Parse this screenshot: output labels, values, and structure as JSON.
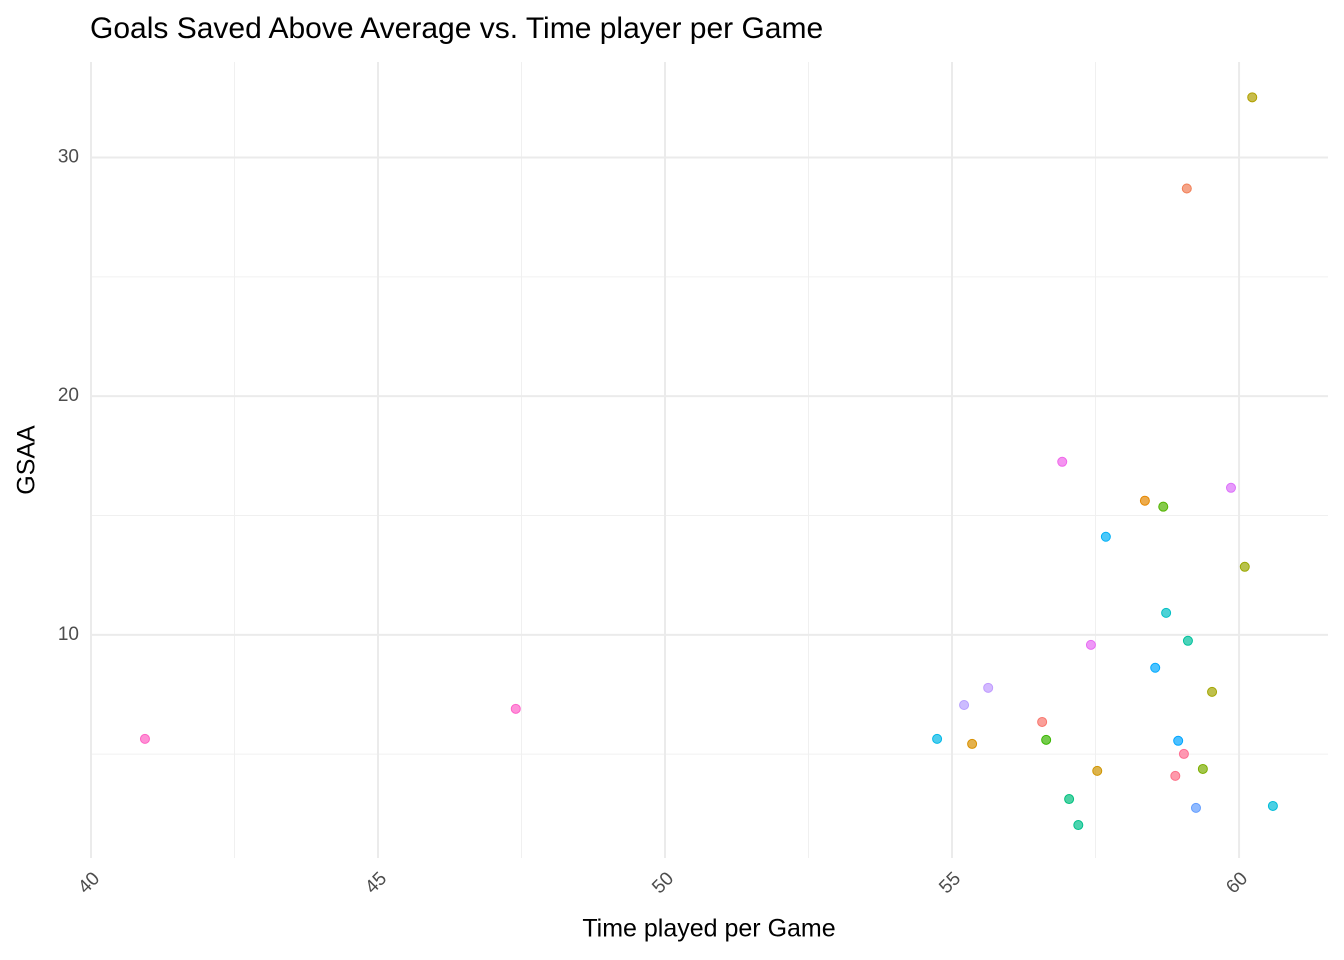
{
  "chart_data": {
    "type": "scatter",
    "title": "Goals Saved Above Average vs. Time player per Game",
    "x_label": "Time played per Game",
    "y_label": "GSAA",
    "x": [
      40.94,
      47.4,
      54.74,
      55.21,
      55.35,
      55.63,
      56.57,
      56.64,
      56.92,
      57.04,
      57.2,
      57.42,
      57.53,
      57.68,
      58.36,
      58.54,
      58.68,
      58.73,
      58.89,
      58.94,
      59.04,
      59.09,
      59.11,
      59.25,
      59.37,
      59.53,
      59.86,
      60.1,
      60.23,
      60.59
    ],
    "values": [
      5.64,
      6.9,
      5.64,
      7.06,
      5.43,
      7.78,
      6.35,
      5.6,
      17.25,
      3.12,
      2.03,
      9.58,
      4.3,
      14.11,
      15.62,
      8.62,
      15.37,
      10.92,
      4.09,
      5.56,
      5.01,
      28.7,
      9.75,
      2.75,
      4.38,
      7.61,
      16.16,
      12.85,
      32.52,
      2.83
    ],
    "colors": [
      "#ff61c3",
      "#ff61c9",
      "#00b8e7",
      "#b79fff",
      "#d89000",
      "#c09bff",
      "#f8766d",
      "#39b600",
      "#f066ea",
      "#00bf7d",
      "#00c08b",
      "#e76bf3",
      "#cf9400",
      "#00b0f6",
      "#e58700",
      "#00a9ff",
      "#53b400",
      "#00bfc4",
      "#fd6f87",
      "#00a5ff",
      "#ff6c91",
      "#f17e55",
      "#00c19c",
      "#619cff",
      "#7cae00",
      "#a3a500",
      "#dc71fa",
      "#9aa800",
      "#b0a000",
      "#00bcd8"
    ],
    "xlim": [
      40,
      61.55
    ],
    "ylim": [
      0.65,
      34.0
    ],
    "xticks": [
      40,
      45,
      50,
      55,
      60
    ],
    "yticks": [
      10,
      20,
      30
    ],
    "xminorticks": [
      42.5,
      47.5,
      52.5,
      57.5
    ],
    "yminorticks": [
      5,
      15,
      25
    ],
    "grid": true
  }
}
